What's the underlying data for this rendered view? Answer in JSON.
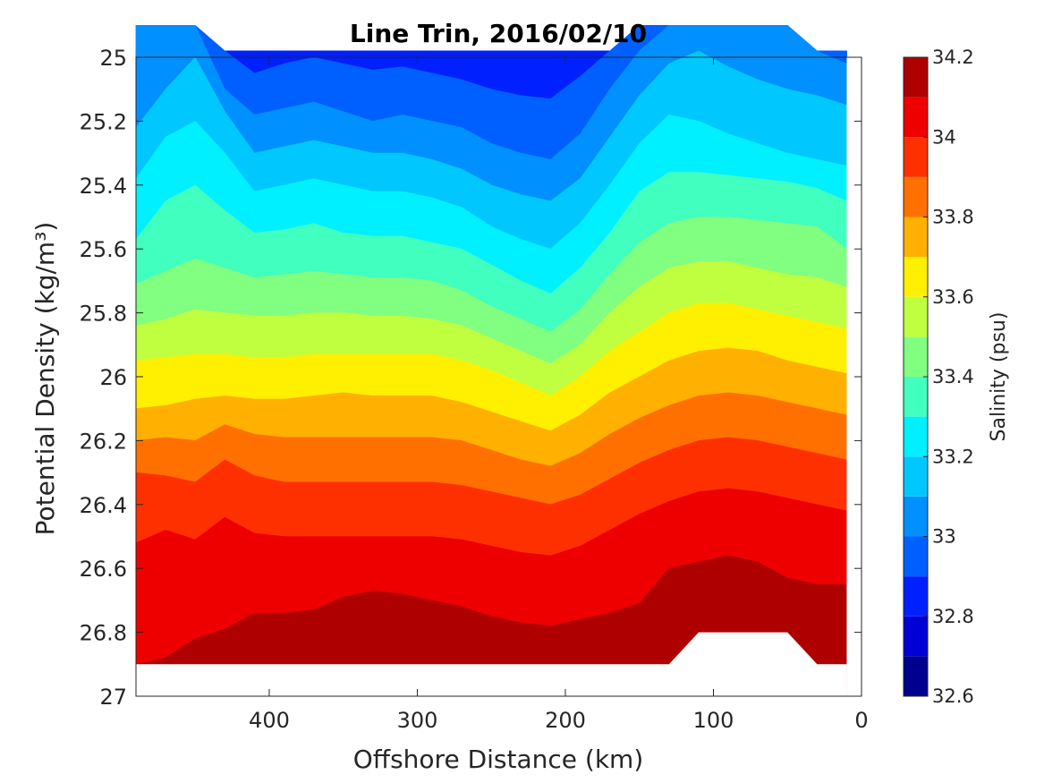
{
  "chart_data": {
    "type": "heatmap",
    "subtype": "filled-contour",
    "title": "Line Trin, 2016/02/10",
    "xlabel": "Offshore Distance (km)",
    "ylabel": "Potential Density (kg/m³)",
    "colorbar_label": "Salinity (psu)",
    "xlim": [
      490,
      0
    ],
    "x_reversed": true,
    "ylim": [
      25,
      27
    ],
    "y_reversed": true,
    "x_ticks": [
      400,
      300,
      200,
      100,
      0
    ],
    "x_tick_labels": [
      "400",
      "300",
      "200",
      "100",
      "0"
    ],
    "y_ticks": [
      25,
      25.2,
      25.4,
      25.6,
      25.8,
      26,
      26.2,
      26.4,
      26.6,
      26.8,
      27
    ],
    "y_tick_labels": [
      "25",
      "25.2",
      "25.4",
      "25.6",
      "25.8",
      "26",
      "26.2",
      "26.4",
      "26.6",
      "26.8",
      "27"
    ],
    "colorbar_ticks": [
      32.6,
      32.8,
      33,
      33.2,
      33.4,
      33.6,
      33.8,
      34,
      34.2
    ],
    "colorbar_tick_labels": [
      "32.6",
      "32.8",
      "33",
      "33.2",
      "33.4",
      "33.6",
      "33.8",
      "34",
      "34.2"
    ],
    "colorbar_range": [
      32.6,
      34.2
    ],
    "levels": [
      32.6,
      32.7,
      32.8,
      32.9,
      33.0,
      33.1,
      33.2,
      33.3,
      33.4,
      33.5,
      33.6,
      33.7,
      33.8,
      33.9,
      34.0,
      34.1,
      34.2
    ],
    "level_colors": [
      "#00008f",
      "#0000d6",
      "#0020ff",
      "#0060ff",
      "#0090ff",
      "#00c8ff",
      "#00f0ff",
      "#40ffbf",
      "#80ff80",
      "#c0ff40",
      "#ffef00",
      "#ffb000",
      "#ff7000",
      "#ff3000",
      "#ef0000",
      "#af0000"
    ],
    "x": [
      490,
      470,
      450,
      430,
      410,
      390,
      370,
      350,
      330,
      310,
      290,
      270,
      250,
      230,
      210,
      190,
      170,
      150,
      130,
      110,
      90,
      70,
      50,
      30,
      10
    ],
    "contour_density_levels": [
      {
        "salinity": 32.8,
        "density": [
          24.98,
          24.98,
          24.98,
          24.98,
          24.98,
          24.98,
          24.98,
          24.98,
          24.98,
          24.98,
          24.98,
          24.98,
          24.98,
          24.98,
          24.98,
          24.98,
          24.98,
          24.98,
          24.98,
          24.98,
          24.98,
          24.98,
          24.98,
          24.98,
          24.98
        ]
      },
      {
        "salinity": 32.9,
        "density": [
          24.9,
          24.9,
          24.9,
          24.98,
          25.05,
          25.02,
          25.0,
          25.02,
          25.04,
          25.03,
          25.05,
          25.07,
          25.1,
          25.12,
          25.13,
          25.06,
          24.98,
          24.9,
          24.9,
          24.9,
          24.9,
          24.9,
          24.9,
          24.98,
          24.98
        ]
      },
      {
        "salinity": 33.0,
        "density": [
          24.9,
          24.9,
          24.9,
          25.1,
          25.18,
          25.16,
          25.14,
          25.17,
          25.2,
          25.18,
          25.2,
          25.22,
          25.27,
          25.3,
          25.32,
          25.24,
          25.1,
          24.98,
          24.9,
          24.9,
          24.9,
          24.9,
          24.9,
          24.98,
          25.02
        ]
      },
      {
        "salinity": 33.1,
        "density": [
          25.22,
          25.1,
          25.0,
          25.17,
          25.3,
          25.28,
          25.26,
          25.28,
          25.3,
          25.3,
          25.32,
          25.35,
          25.4,
          25.43,
          25.45,
          25.38,
          25.25,
          25.12,
          25.02,
          24.98,
          25.03,
          25.07,
          25.1,
          25.12,
          25.15
        ]
      },
      {
        "salinity": 33.2,
        "density": [
          25.38,
          25.25,
          25.2,
          25.3,
          25.42,
          25.4,
          25.38,
          25.4,
          25.42,
          25.42,
          25.44,
          25.47,
          25.53,
          25.57,
          25.6,
          25.52,
          25.4,
          25.27,
          25.18,
          25.2,
          25.24,
          25.27,
          25.3,
          25.32,
          25.34
        ]
      },
      {
        "salinity": 33.3,
        "density": [
          25.57,
          25.45,
          25.4,
          25.48,
          25.55,
          25.54,
          25.52,
          25.55,
          25.56,
          25.56,
          25.58,
          25.6,
          25.65,
          25.7,
          25.74,
          25.66,
          25.55,
          25.42,
          25.36,
          25.36,
          25.37,
          25.38,
          25.39,
          25.41,
          25.45
        ]
      },
      {
        "salinity": 33.4,
        "density": [
          25.71,
          25.67,
          25.63,
          25.66,
          25.69,
          25.68,
          25.67,
          25.68,
          25.69,
          25.69,
          25.7,
          25.73,
          25.78,
          25.82,
          25.86,
          25.79,
          25.68,
          25.58,
          25.52,
          25.5,
          25.5,
          25.51,
          25.52,
          25.53,
          25.6
        ]
      },
      {
        "salinity": 33.5,
        "density": [
          25.84,
          25.82,
          25.79,
          25.8,
          25.81,
          25.81,
          25.8,
          25.8,
          25.81,
          25.81,
          25.82,
          25.84,
          25.88,
          25.92,
          25.96,
          25.9,
          25.8,
          25.72,
          25.66,
          25.64,
          25.64,
          25.66,
          25.68,
          25.69,
          25.72
        ]
      },
      {
        "salinity": 33.6,
        "density": [
          25.95,
          25.94,
          25.93,
          25.93,
          25.94,
          25.94,
          25.93,
          25.93,
          25.93,
          25.93,
          25.93,
          25.95,
          25.98,
          26.02,
          26.06,
          26.0,
          25.92,
          25.86,
          25.8,
          25.77,
          25.77,
          25.79,
          25.81,
          25.83,
          25.85
        ]
      },
      {
        "salinity": 33.7,
        "density": [
          26.1,
          26.09,
          26.07,
          26.06,
          26.07,
          26.07,
          26.06,
          26.05,
          26.06,
          26.06,
          26.06,
          26.08,
          26.11,
          26.14,
          26.17,
          26.12,
          26.05,
          26.0,
          25.95,
          25.92,
          25.91,
          25.92,
          25.95,
          25.97,
          25.99
        ]
      },
      {
        "salinity": 33.8,
        "density": [
          26.2,
          26.19,
          26.2,
          26.15,
          26.18,
          26.19,
          26.19,
          26.19,
          26.19,
          26.19,
          26.19,
          26.2,
          26.23,
          26.26,
          26.28,
          26.24,
          26.18,
          26.13,
          26.09,
          26.06,
          26.05,
          26.06,
          26.08,
          26.1,
          26.12
        ]
      },
      {
        "salinity": 33.9,
        "density": [
          26.3,
          26.31,
          26.33,
          26.26,
          26.31,
          26.33,
          26.33,
          26.33,
          26.33,
          26.33,
          26.33,
          26.34,
          26.36,
          26.38,
          26.4,
          26.37,
          26.32,
          26.27,
          26.23,
          26.2,
          26.19,
          26.2,
          26.22,
          26.24,
          26.26
        ]
      },
      {
        "salinity": 34.0,
        "density": [
          26.52,
          26.48,
          26.51,
          26.44,
          26.49,
          26.5,
          26.5,
          26.5,
          26.5,
          26.5,
          26.5,
          26.51,
          26.53,
          26.55,
          26.56,
          26.53,
          26.48,
          26.43,
          26.39,
          26.36,
          26.35,
          26.36,
          26.38,
          26.4,
          26.42
        ]
      },
      {
        "salinity": 34.1,
        "density": [
          26.9,
          26.88,
          26.82,
          26.79,
          26.74,
          26.74,
          26.73,
          26.69,
          26.67,
          26.68,
          26.7,
          26.72,
          26.75,
          26.77,
          26.78,
          26.76,
          26.74,
          26.71,
          26.6,
          26.58,
          26.56,
          26.58,
          26.63,
          26.65,
          26.65
        ]
      }
    ],
    "data_bottom_density": [
      26.9,
      26.9,
      26.9,
      26.9,
      26.9,
      26.9,
      26.9,
      26.9,
      26.9,
      26.9,
      26.9,
      26.9,
      26.9,
      26.9,
      26.9,
      26.9,
      26.9,
      26.9,
      26.9,
      26.8,
      26.8,
      26.8,
      26.8,
      26.9,
      26.9
    ],
    "grid": false
  }
}
